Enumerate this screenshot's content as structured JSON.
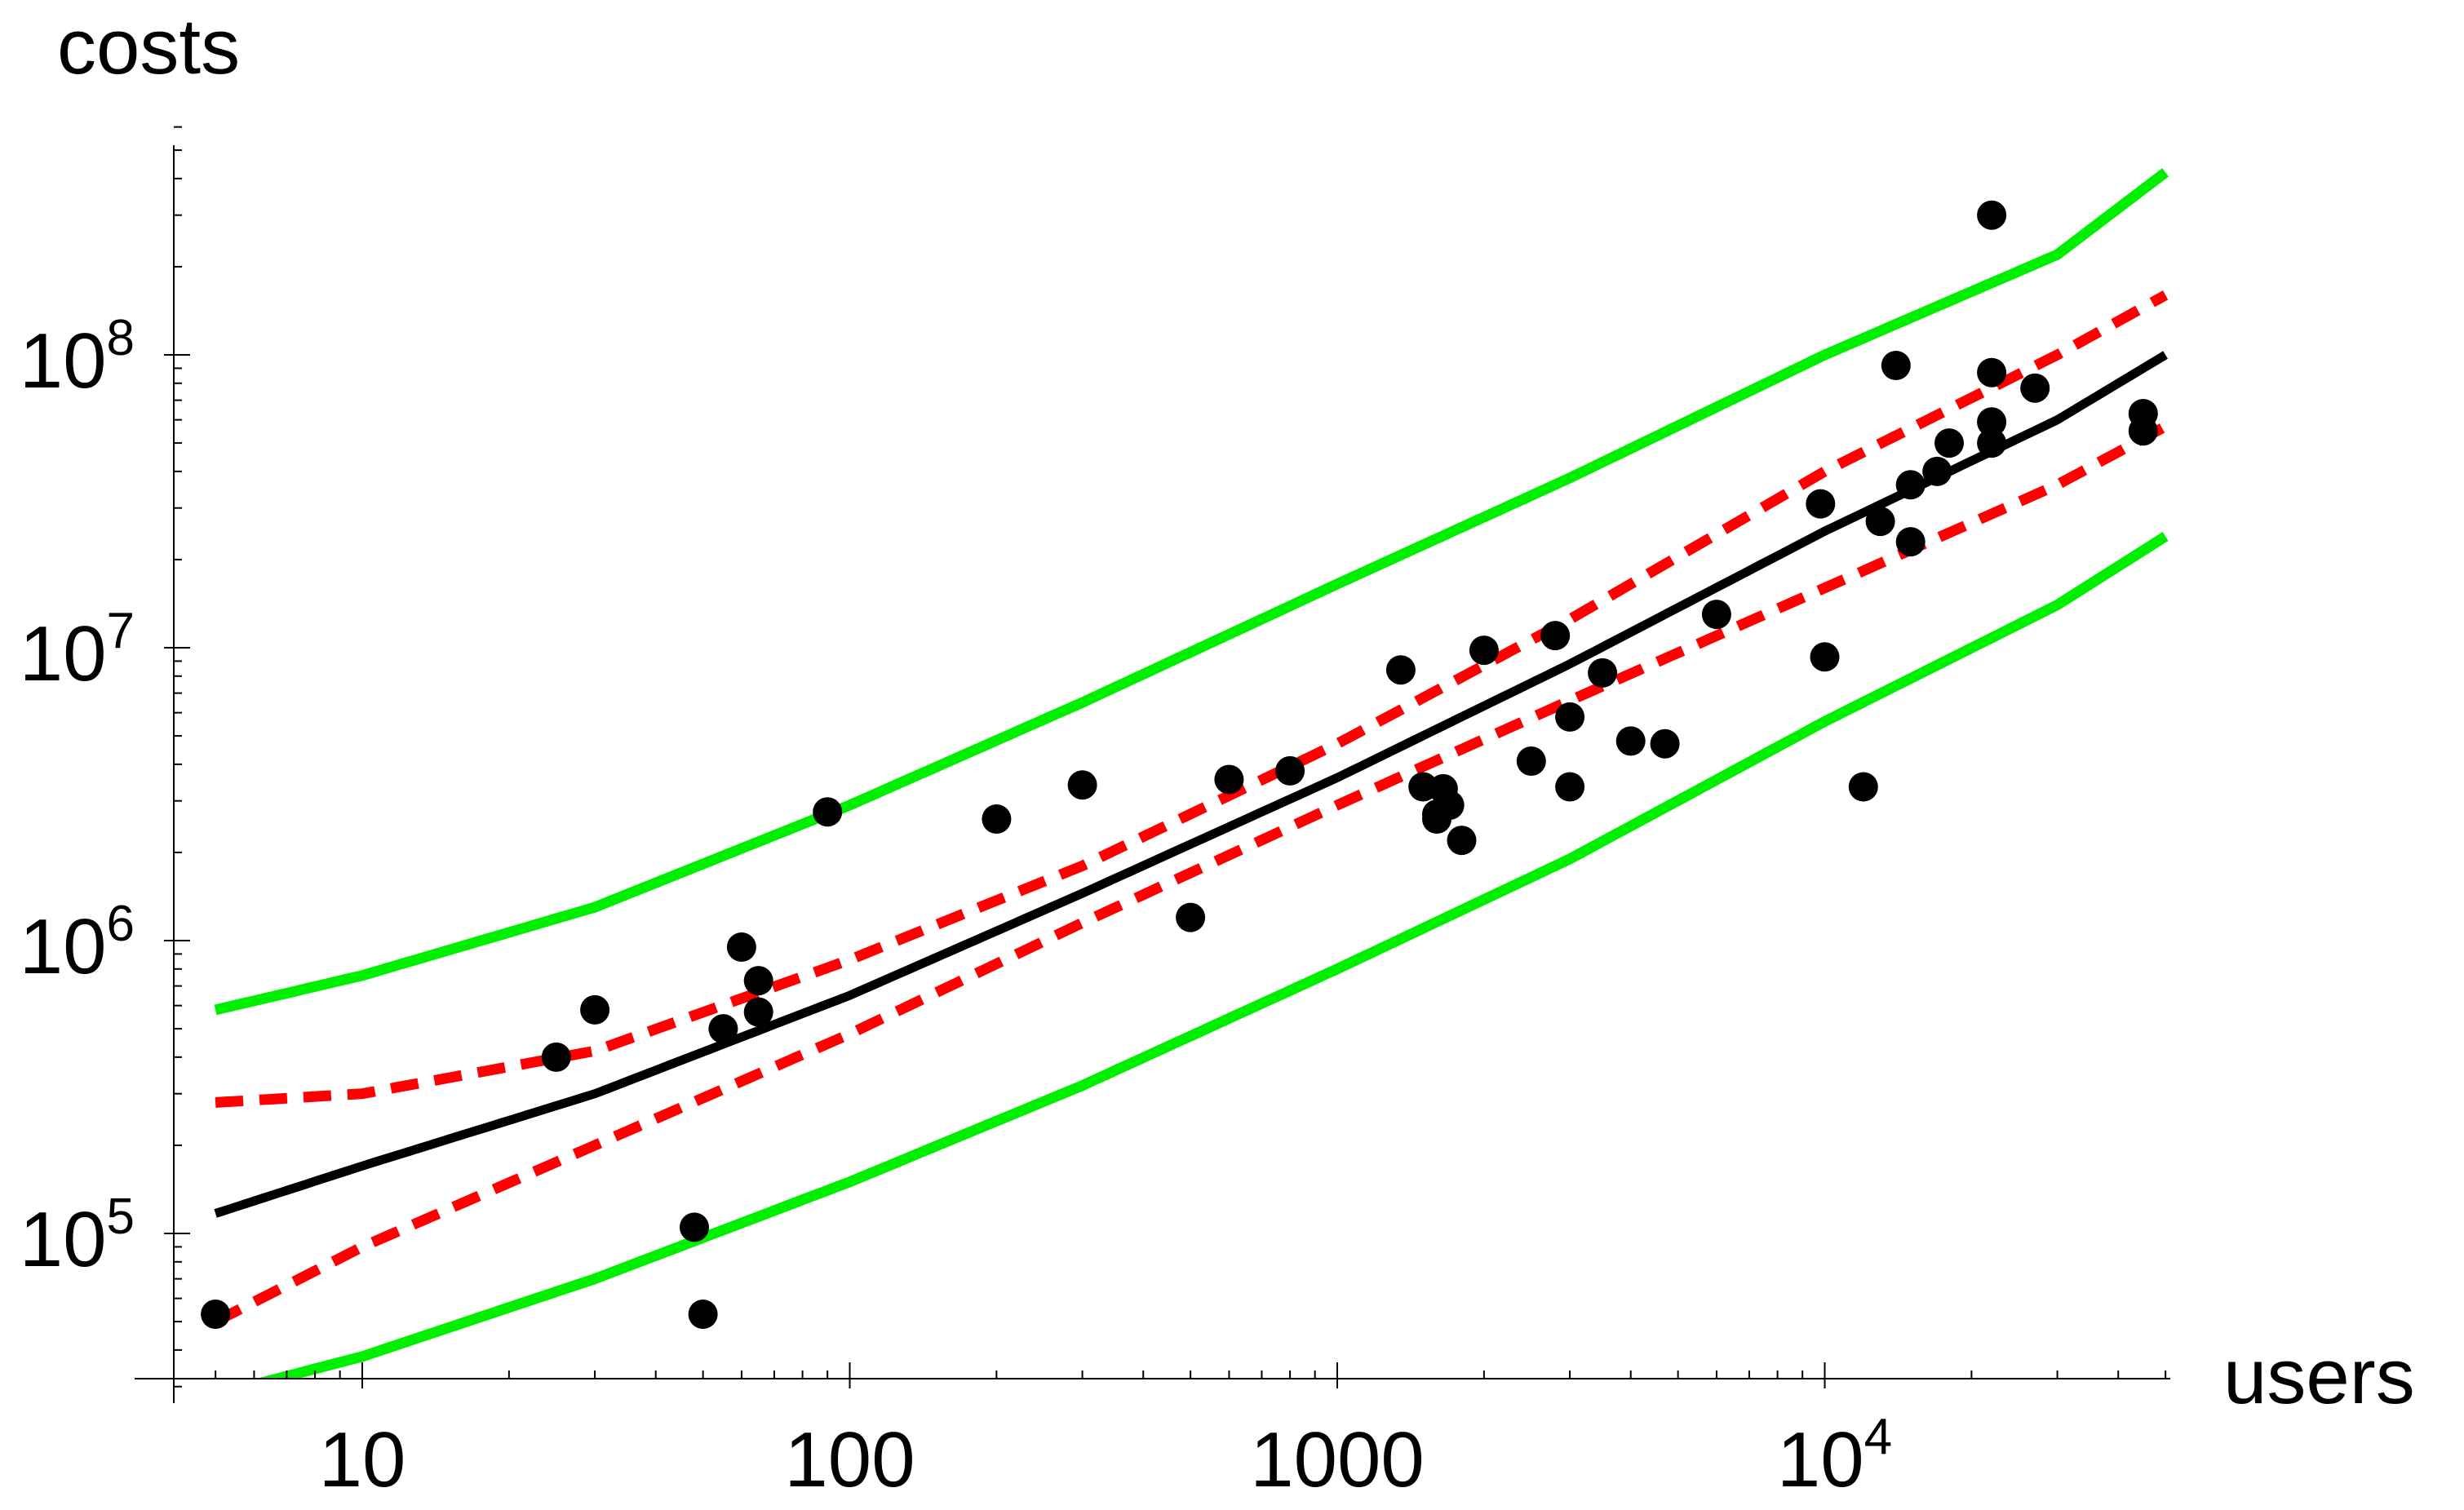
{
  "chart_data": {
    "type": "scatter",
    "title": "",
    "xlabel": "users",
    "ylabel": "costs",
    "xscale": "log",
    "yscale": "log",
    "xlim": [
      4.3,
      55000
    ],
    "ylim": [
      30000,
      600000000
    ],
    "grid": false,
    "x_ticks": [
      {
        "value": 10,
        "base": "10",
        "exp": ""
      },
      {
        "value": 100,
        "base": "100",
        "exp": ""
      },
      {
        "value": 1000,
        "base": "1000",
        "exp": ""
      },
      {
        "value": 10000,
        "base": "10",
        "exp": "4"
      }
    ],
    "y_ticks": [
      {
        "value": 100000,
        "base": "10",
        "exp": "5"
      },
      {
        "value": 1000000,
        "base": "10",
        "exp": "6"
      },
      {
        "value": 10000000,
        "base": "10",
        "exp": "7"
      },
      {
        "value": 100000000,
        "base": "10",
        "exp": "8"
      }
    ],
    "points": {
      "color": "#000000",
      "x": [
        5,
        25,
        30,
        48,
        50,
        55,
        60,
        65,
        65,
        90,
        200,
        300,
        500,
        600,
        800,
        1350,
        1500,
        1600,
        1600,
        1650,
        1700,
        1800,
        2000,
        2500,
        2800,
        3000,
        3000,
        3500,
        4000,
        4700,
        6000,
        9800,
        10000,
        12000,
        13000,
        14000,
        15000,
        15000,
        17000,
        18000,
        22000,
        22000,
        22000,
        22000,
        27000,
        45000,
        45000
      ],
      "y": [
        53000,
        400000,
        580000,
        105000,
        53000,
        500000,
        950000,
        730000,
        570000,
        2750000,
        2600000,
        3400000,
        1200000,
        3550000,
        3800000,
        8400000,
        3350000,
        2600000,
        2700000,
        3300000,
        2900000,
        2200000,
        9800000,
        4100000,
        11000000,
        5800000,
        3350000,
        8200000,
        4800000,
        4700000,
        13000000,
        31000000,
        9300000,
        3350000,
        27000000,
        92000000,
        36000000,
        23000000,
        40000000,
        50000000,
        300000000,
        87000000,
        59000000,
        50000000,
        77000000,
        63000000,
        55000000
      ]
    },
    "fit": {
      "color": "#000000",
      "x": [
        5,
        10,
        30,
        100,
        300,
        1000,
        3000,
        10000,
        30000,
        50000
      ],
      "y": [
        117000,
        170000,
        300000,
        650000,
        1450000,
        3600000,
        8800000,
        25000000,
        60000000,
        100000000
      ]
    },
    "confidence_band": {
      "color": "#ff0000",
      "upper": {
        "x": [
          5,
          10,
          30,
          100,
          300,
          1000,
          3000,
          10000,
          30000,
          50000
        ],
        "y": [
          280000,
          300000,
          420000,
          860000,
          1800000,
          4700000,
          12500000,
          40000000,
          100000000,
          160000000
        ]
      },
      "lower": {
        "x": [
          5,
          10,
          30,
          100,
          300,
          1000,
          3000,
          10000,
          30000,
          50000
        ],
        "y": [
          50000,
          90000,
          200000,
          480000,
          1150000,
          2900000,
          6600000,
          16000000,
          36000000,
          57000000
        ]
      }
    },
    "prediction_band": {
      "color": "#00ee00",
      "upper": {
        "x": [
          5,
          10,
          30,
          100,
          300,
          1000,
          3000,
          10000,
          30000,
          50000
        ],
        "y": [
          580000,
          760000,
          1300000,
          2900000,
          6500000,
          16500000,
          38000000,
          100000000,
          220000000,
          420000000
        ]
      },
      "lower": {
        "x": [
          5.8,
          10,
          30,
          100,
          300,
          1000,
          3000,
          10000,
          30000,
          50000
        ],
        "y": [
          30000,
          38000,
          70000,
          150000,
          320000,
          800000,
          1900000,
          5600000,
          14000000,
          24000000
        ]
      }
    }
  }
}
